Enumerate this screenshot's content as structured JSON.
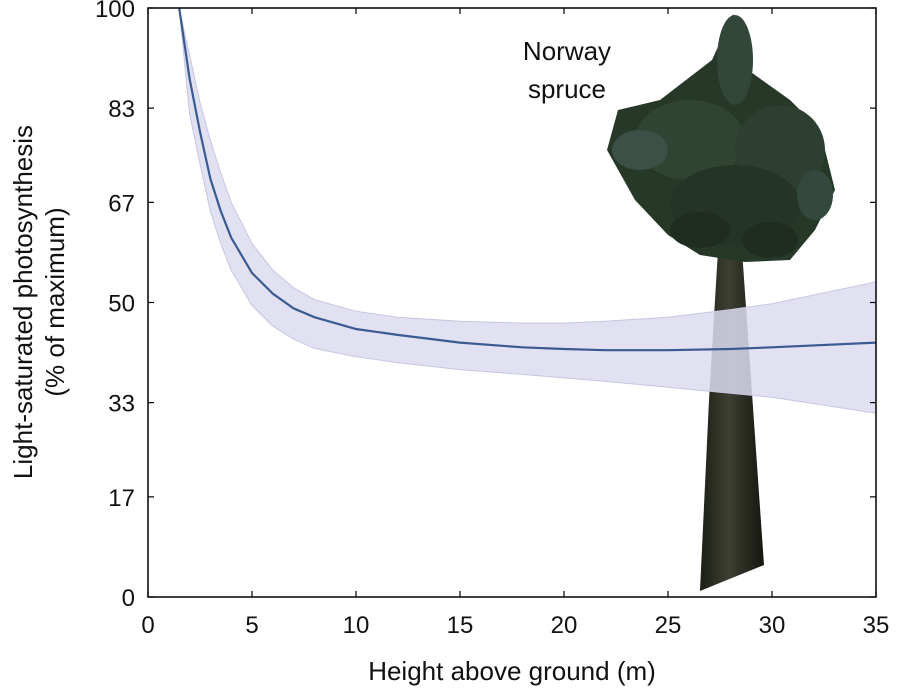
{
  "chart_data": {
    "type": "line",
    "title": "",
    "xlabel": "Height above ground (m)",
    "ylabel": "Light-saturated photosynthesis (% of maximum)",
    "ylabel_lines": [
      "Light-saturated photosynthesis",
      "(% of maximum)"
    ],
    "xlim": [
      0,
      35
    ],
    "ylim": [
      0,
      100
    ],
    "xticks": [
      0,
      5,
      10,
      15,
      20,
      25,
      30,
      35
    ],
    "yticks": [
      0,
      17,
      33,
      50,
      67,
      83,
      100
    ],
    "ytick_labels": [
      "0",
      "17",
      "33",
      "50",
      "67",
      "83",
      "100"
    ],
    "grid": false,
    "annotation": {
      "lines": [
        "Norway",
        "spruce"
      ],
      "x": 22.5,
      "y": 92
    },
    "series": [
      {
        "x": [
          1.5,
          2,
          2.5,
          3,
          3.5,
          4,
          5,
          6,
          7,
          8,
          10,
          12,
          15,
          18,
          20,
          22,
          25,
          28,
          30,
          35
        ],
        "values": [
          100,
          88,
          79,
          71,
          65.5,
          61,
          55,
          51.5,
          49,
          47.5,
          45.5,
          44.5,
          43.2,
          42.4,
          42.1,
          41.9,
          41.9,
          42.1,
          42.4,
          43.2
        ],
        "upper": [
          100,
          92,
          84,
          77.5,
          72,
          67,
          60,
          55.5,
          52.5,
          50.5,
          48.5,
          47.5,
          46.8,
          46.5,
          46.5,
          46.8,
          47.5,
          48.8,
          49.8,
          53.5
        ],
        "lower": [
          100,
          82,
          73.5,
          65.5,
          60,
          55.5,
          49.5,
          46,
          43.8,
          42.2,
          40.8,
          39.8,
          38.6,
          37.8,
          37.2,
          36.6,
          35.6,
          34.6,
          33.9,
          31.2
        ]
      }
    ],
    "colors": {
      "line": "#3a5a92",
      "band": "#dcdcf0",
      "band_edge": "#c6c6e4",
      "axis": "#000000"
    }
  }
}
